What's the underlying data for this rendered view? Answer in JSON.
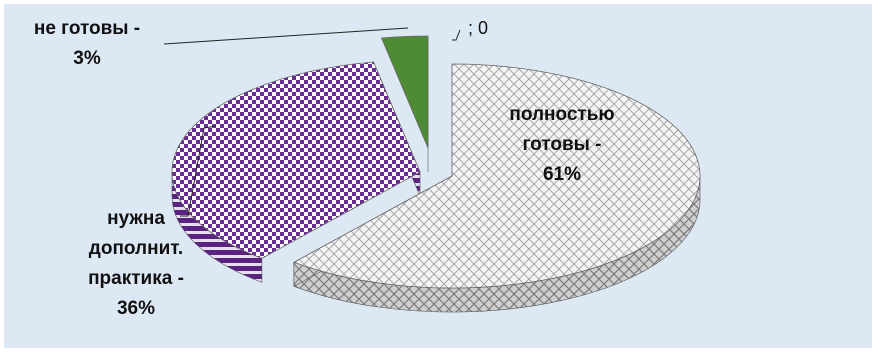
{
  "chart_data": {
    "type": "pie",
    "style": "3d-exploded",
    "slices": [
      {
        "label_lines": [
          "полностью",
          "готовы -",
          "61%"
        ],
        "value": 61,
        "color": "#e4e4e4",
        "pattern": "light-diamond-crosshatch"
      },
      {
        "label_lines": [
          "нужна",
          "дополнит.",
          "практика -",
          "36%"
        ],
        "value": 36,
        "color": "#7a3aa0",
        "pattern": "purple-checkerboard"
      },
      {
        "label_lines": [
          "не готовы -",
          "3%"
        ],
        "value": 3,
        "color": "#4f8a35",
        "pattern": "solid"
      },
      {
        "label_lines": [
          "; 0"
        ],
        "value": 0,
        "color": "#4f8a35",
        "pattern": "none"
      }
    ],
    "background": "#dde8f5",
    "legend": "none"
  }
}
